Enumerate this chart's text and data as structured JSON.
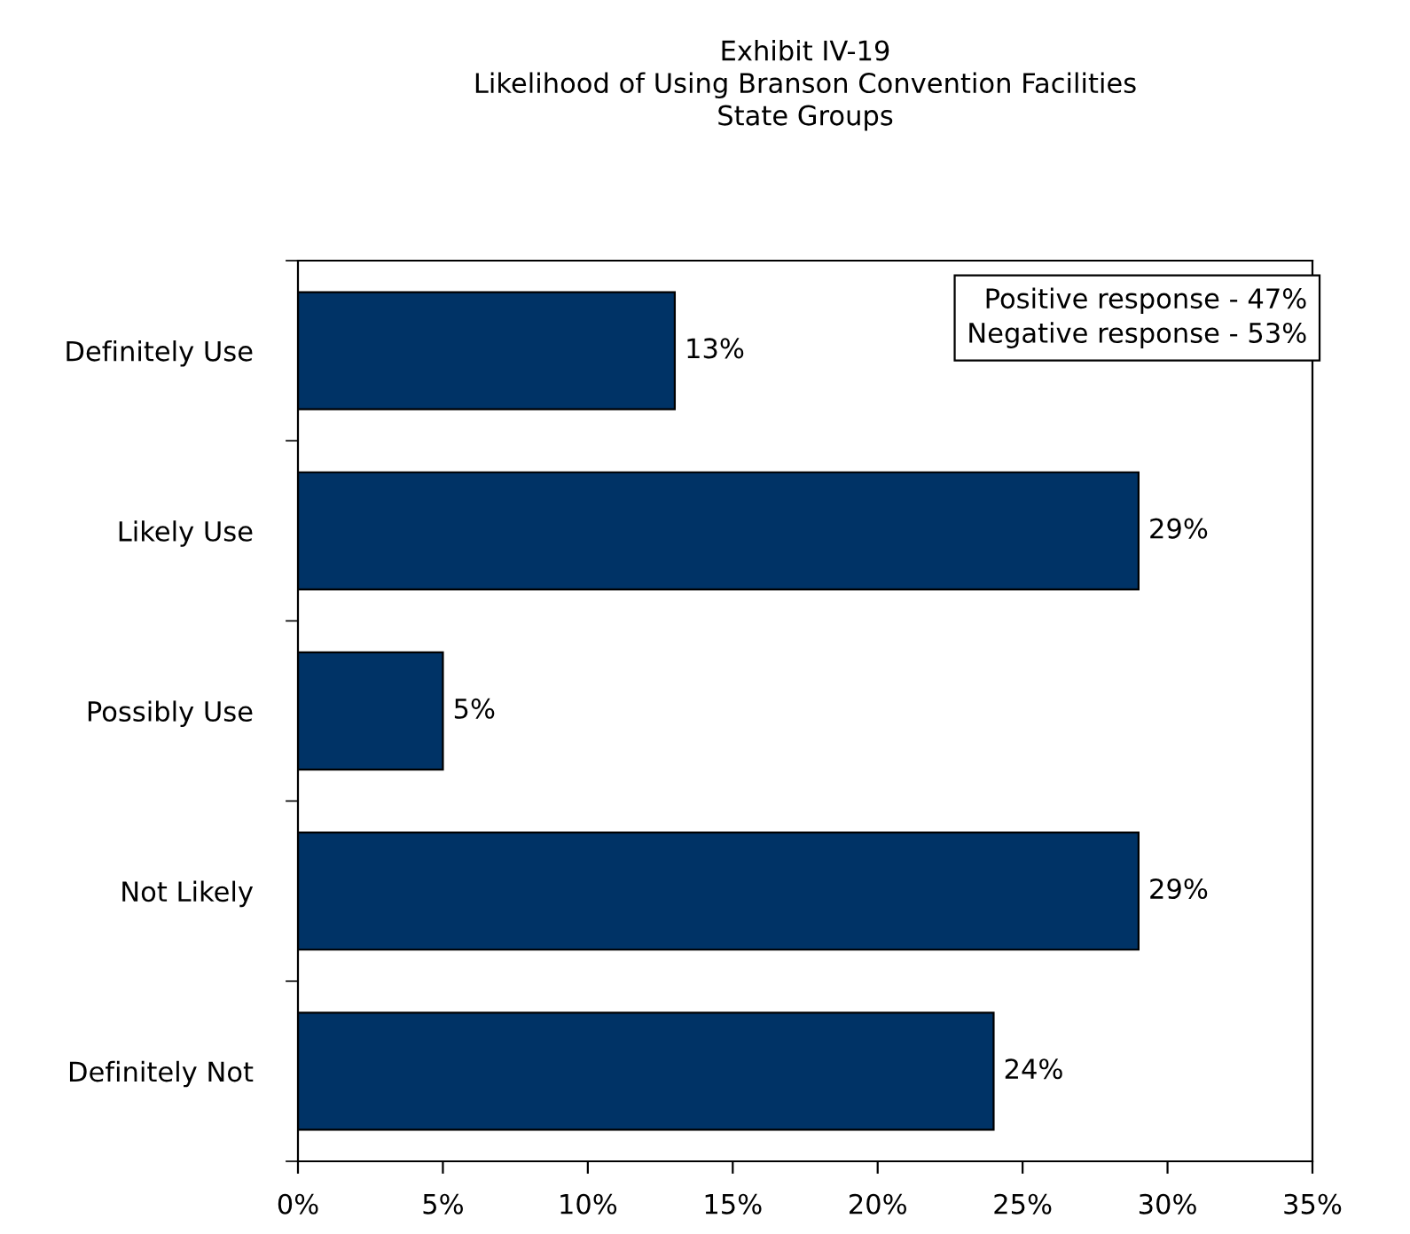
{
  "chart_data": {
    "type": "bar",
    "orientation": "horizontal",
    "title": "Exhibit IV-19\nLikelihood of Using Branson Convention Facilities\nState Groups",
    "categories": [
      "Definitely Use",
      "Likely Use",
      "Possibly Use",
      "Not Likely",
      "Definitely Not"
    ],
    "values": [
      13,
      29,
      5,
      29,
      24
    ],
    "color": "#003366",
    "data_labels": true,
    "value_labels": [
      "13%",
      "29%",
      "5%",
      "29%",
      "24%"
    ],
    "xlim": [
      0,
      35
    ],
    "xticks": [
      {
        "value": 0,
        "label": "0%"
      },
      {
        "value": 5,
        "label": "5%"
      },
      {
        "value": 10,
        "label": "10%"
      },
      {
        "value": 15,
        "label": "15%"
      },
      {
        "value": 20,
        "label": "20%"
      },
      {
        "value": 25,
        "label": "25%"
      },
      {
        "value": 30,
        "label": "30%"
      },
      {
        "value": 35,
        "label": "35%"
      }
    ],
    "annotations": [
      "Positive response - 47%\nNegative response - 53%"
    ],
    "grid": false,
    "legend": false
  }
}
